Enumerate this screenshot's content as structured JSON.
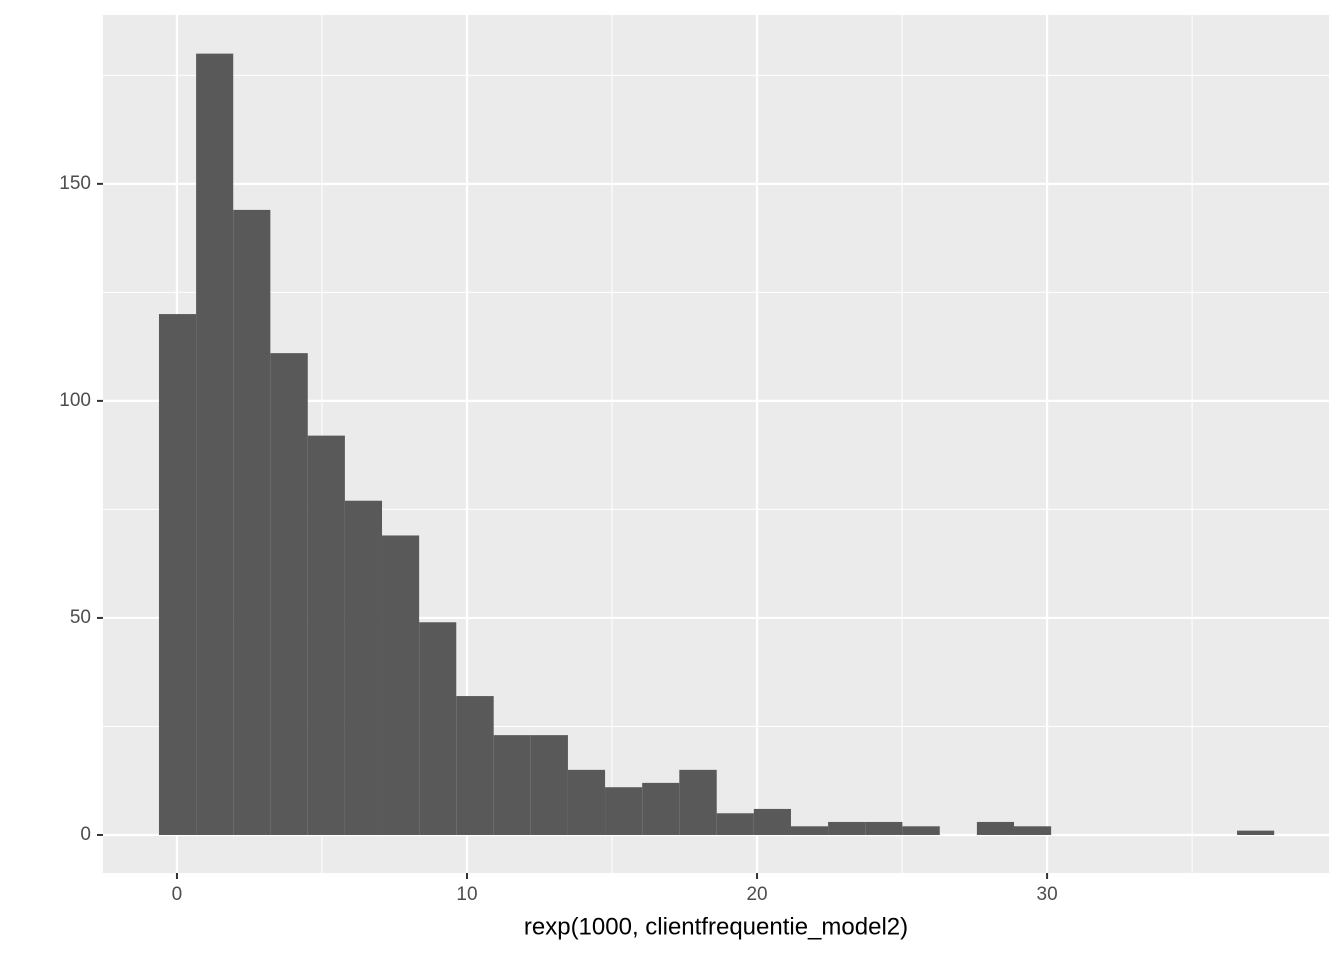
{
  "chart_data": {
    "type": "histogram",
    "x_label": "rexp(1000, clientfrequentie_model2)",
    "bins": [
      -0.62,
      0.66,
      1.94,
      3.22,
      4.51,
      5.79,
      7.07,
      8.35,
      9.63,
      10.92,
      12.2,
      13.48,
      14.76,
      16.04,
      17.32,
      18.61,
      19.89,
      21.17,
      22.45,
      23.73,
      25.01,
      26.3,
      27.58,
      28.86,
      30.14,
      31.42,
      32.7,
      33.99,
      35.27,
      36.55,
      37.83
    ],
    "values": [
      120,
      180,
      144,
      111,
      92,
      77,
      69,
      49,
      32,
      23,
      23,
      15,
      11,
      12,
      15,
      5,
      6,
      2,
      3,
      3,
      2,
      0,
      3,
      2,
      0,
      0,
      0,
      0,
      0,
      1
    ],
    "color": "#595959",
    "xlim": [
      -2.55,
      39.72
    ],
    "xticks": [
      0,
      10,
      20,
      30
    ],
    "xminor": [
      5,
      15,
      25,
      35
    ],
    "ylim": [
      -8.76,
      188.9
    ],
    "yticks": [
      0,
      50,
      100,
      150
    ],
    "yminor": [
      25,
      75,
      125,
      175
    ],
    "grid": true
  }
}
